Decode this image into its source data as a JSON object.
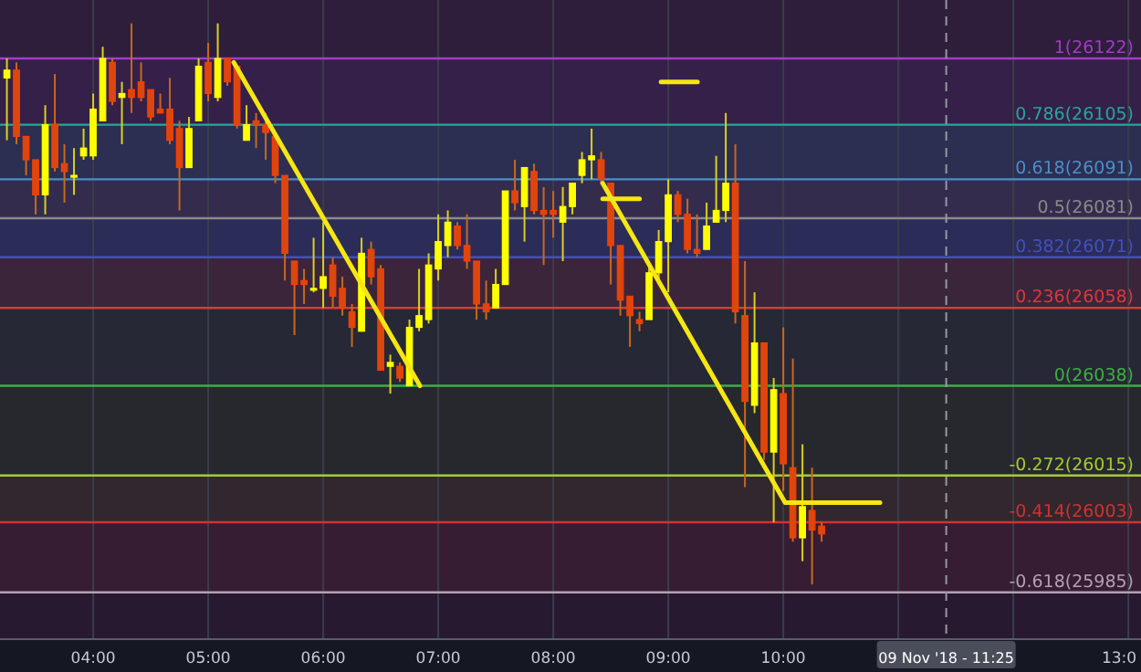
{
  "chart_data": {
    "type": "candlestick",
    "x": [
      3.25,
      3.3333,
      3.4167,
      3.5,
      3.5833,
      3.6667,
      3.75,
      3.8333,
      3.9167,
      4,
      4.0833,
      4.1667,
      4.25,
      4.3333,
      4.4167,
      4.5,
      4.5833,
      4.6667,
      4.75,
      4.8333,
      4.9167,
      5,
      5.0833,
      5.1667,
      5.25,
      5.3333,
      5.4167,
      5.5,
      5.5833,
      5.6667,
      5.75,
      5.8333,
      5.9167,
      6,
      6.0833,
      6.1667,
      6.25,
      6.3333,
      6.4167,
      6.5,
      6.5833,
      6.6667,
      6.75,
      6.8333,
      6.9167,
      7,
      7.0833,
      7.1667,
      7.25,
      7.3333,
      7.4167,
      7.5,
      7.5833,
      7.6667,
      7.75,
      7.8333,
      7.9167,
      8,
      8.0833,
      8.1667,
      8.25,
      8.3333,
      8.4167,
      8.5,
      8.5833,
      8.6667,
      8.75,
      8.8333,
      8.9167,
      9,
      9.0833,
      9.1667,
      9.25,
      9.3333,
      9.4167,
      9.5,
      9.5833,
      9.6667,
      9.75,
      9.8333,
      9.9167,
      10,
      10.0833,
      10.1667,
      10.25,
      10.3333
    ],
    "ohlc": [
      [
        26117,
        26122,
        26101,
        26119
      ],
      [
        26119,
        26121,
        26100,
        26102
      ],
      [
        26102,
        26102,
        26092,
        26096
      ],
      [
        26096,
        26096,
        26082,
        26087
      ],
      [
        26087,
        26110,
        26082,
        26105
      ],
      [
        26105,
        26118,
        26093,
        26094
      ],
      [
        26095,
        26100,
        26085,
        26093
      ],
      [
        26092,
        26099,
        26087,
        26092
      ],
      [
        26097,
        26104,
        26096,
        26099
      ],
      [
        26097,
        26113,
        26096,
        26109
      ],
      [
        26106,
        26125,
        26106,
        26122
      ],
      [
        26121,
        26122,
        26110,
        26111
      ],
      [
        26112,
        26116,
        26100,
        26113
      ],
      [
        26114,
        26131,
        26108,
        26112
      ],
      [
        26116,
        26121,
        26111,
        26112
      ],
      [
        26114,
        26114,
        26106,
        26107
      ],
      [
        26109,
        26113,
        26108,
        26108
      ],
      [
        26109,
        26117,
        26100,
        26101
      ],
      [
        26104,
        26106,
        26083,
        26094
      ],
      [
        26094,
        26107,
        26094,
        26104
      ],
      [
        26106,
        26122,
        26106,
        26120
      ],
      [
        26121,
        26126,
        26111,
        26113
      ],
      [
        26112,
        26131,
        26111,
        26122
      ],
      [
        26122,
        26122,
        26115,
        26116
      ],
      [
        26120,
        26120,
        26104,
        26105
      ],
      [
        26101,
        26110,
        26101,
        26105
      ],
      [
        26106,
        26108,
        26099,
        26105
      ],
      [
        26105,
        26108,
        26096,
        26103
      ],
      [
        26102,
        26102,
        26090,
        26092
      ],
      [
        26092,
        26092,
        26065,
        26072
      ],
      [
        26070,
        26070,
        26051,
        26064
      ],
      [
        26065,
        26068,
        26059,
        26064
      ],
      [
        26063,
        26076,
        26062,
        26063
      ],
      [
        26063,
        26080,
        26058,
        26066
      ],
      [
        26069,
        26071,
        26058,
        26061
      ],
      [
        26063,
        26066,
        26056,
        26058
      ],
      [
        26057,
        26059,
        26048,
        26053
      ],
      [
        26052,
        26076,
        26052,
        26072
      ],
      [
        26073,
        26075,
        26064,
        26066
      ],
      [
        26068,
        26069,
        26042,
        26042
      ],
      [
        26043,
        26046,
        26036,
        26044
      ],
      [
        26043,
        26044,
        26039,
        26040
      ],
      [
        26038,
        26055,
        26038,
        26053
      ],
      [
        26053,
        26068,
        26052,
        26056
      ],
      [
        26055,
        26072,
        26054,
        26069
      ],
      [
        26068,
        26082,
        26065,
        26075
      ],
      [
        26074,
        26083,
        26071,
        26080
      ],
      [
        26079,
        26080,
        26073,
        26074
      ],
      [
        26074,
        26082,
        26068,
        26070
      ],
      [
        26070,
        26070,
        26055,
        26059
      ],
      [
        26059,
        26065,
        26055,
        26057
      ],
      [
        26058,
        26068,
        26058,
        26064
      ],
      [
        26064,
        26088,
        26064,
        26088
      ],
      [
        26088,
        26096,
        26083,
        26085
      ],
      [
        26084,
        26094,
        26075,
        26094
      ],
      [
        26093,
        26095,
        26082,
        26083
      ],
      [
        26083,
        26089,
        26069,
        26082
      ],
      [
        26083,
        26088,
        26076,
        26082
      ],
      [
        26080,
        26089,
        26070,
        26084
      ],
      [
        26084,
        26090,
        26082,
        26090
      ],
      [
        26092,
        26098,
        26090,
        26096
      ],
      [
        26096,
        26104,
        26091,
        26097
      ],
      [
        26096,
        26098,
        26090,
        26091
      ],
      [
        26090,
        26090,
        26064,
        26074
      ],
      [
        26074,
        26074,
        26056,
        26060
      ],
      [
        26061,
        26061,
        26048,
        26056
      ],
      [
        26055,
        26057,
        26052,
        26054
      ],
      [
        26055,
        26069,
        26055,
        26067
      ],
      [
        26067,
        26078,
        26064,
        26075
      ],
      [
        26075,
        26091,
        26062,
        26087
      ],
      [
        26087,
        26088,
        26080,
        26082
      ],
      [
        26082,
        26086,
        26072,
        26073
      ],
      [
        26073,
        26082,
        26071,
        26072
      ],
      [
        26073,
        26085,
        26073,
        26079
      ],
      [
        26080,
        26097,
        26080,
        26083
      ],
      [
        26083,
        26108,
        26080,
        26090
      ],
      [
        26090,
        26100,
        26054,
        26057
      ],
      [
        26056,
        26070,
        26012,
        26034
      ],
      [
        26033,
        26062,
        26031,
        26049
      ],
      [
        26049,
        26049,
        26019,
        26021
      ],
      [
        26021,
        26040,
        26003,
        26037
      ],
      [
        26036,
        26053,
        26011,
        26018
      ],
      [
        26017,
        26045,
        25998,
        25999
      ],
      [
        25999,
        26023,
        25993,
        26007
      ],
      [
        26006,
        26017,
        25987,
        26001
      ],
      [
        26002,
        26003,
        25998,
        26000
      ]
    ],
    "series": [
      {
        "type": "line",
        "color": "#f5e614",
        "x": [
          5.222,
          6.841
        ],
        "values": [
          26121,
          26038
        ]
      },
      {
        "type": "line",
        "color": "#f5e614",
        "x": [
          8.429,
          10.016,
          10.841
        ],
        "values": [
          26090,
          26008,
          26008
        ]
      },
      {
        "type": "line",
        "color": "#f5e614",
        "x": [
          8.937,
          9.254
        ],
        "values": [
          26116,
          26116
        ]
      },
      {
        "type": "line",
        "color": "#f5e614",
        "x": [
          8.43,
          8.75
        ],
        "values": [
          26086,
          26086
        ]
      }
    ],
    "xlim": [
      3.19,
      13.11
    ],
    "ylim": [
      25973,
      26137
    ],
    "xticks": [
      {
        "value": 4,
        "label": "04:00"
      },
      {
        "value": 5,
        "label": "05:00"
      },
      {
        "value": 6,
        "label": "06:00"
      },
      {
        "value": 7,
        "label": "07:00"
      },
      {
        "value": 8,
        "label": "08:00"
      },
      {
        "value": 9,
        "label": "09:00"
      },
      {
        "value": 10,
        "label": "10:00"
      },
      {
        "value": 11,
        "label": null
      },
      {
        "value": 12,
        "label": null
      },
      {
        "value": 13,
        "label": "13:0"
      }
    ],
    "annotations": [
      "09 Nov '18 - 11:25"
    ],
    "grid": "x",
    "tick_labels": "x",
    "bands": [
      {
        "axis": "y",
        "from": 26122,
        "to": 26137,
        "color": "#33203f"
      },
      {
        "axis": "y",
        "from": 26105,
        "to": 26122,
        "color": "#3a2250"
      },
      {
        "axis": "y",
        "from": 26091,
        "to": 26105,
        "color": "#30325a"
      },
      {
        "axis": "y",
        "from": 26081,
        "to": 26091,
        "color": "#3a3055"
      },
      {
        "axis": "y",
        "from": 26071,
        "to": 26081,
        "color": "#303062"
      },
      {
        "axis": "y",
        "from": 26058,
        "to": 26071,
        "color": "#42283f"
      },
      {
        "axis": "y",
        "from": 26038,
        "to": 26058,
        "color": "#292c38"
      },
      {
        "axis": "y",
        "from": 26015,
        "to": 26038,
        "color": "#2a2c30"
      },
      {
        "axis": "y",
        "from": 26003,
        "to": 26015,
        "color": "#372a30"
      },
      {
        "axis": "y",
        "from": 25985,
        "to": 26003,
        "color": "#3c1e36"
      },
      {
        "axis": "y",
        "from": 25973,
        "to": 25985,
        "color": "#2a1a32"
      }
    ],
    "ref_lines": [
      {
        "axis": "y",
        "value": 26122,
        "label": "1(26122)",
        "color": "#a23cc8"
      },
      {
        "axis": "y",
        "value": 26105,
        "label": "0.786(26105)",
        "color": "#26a69a"
      },
      {
        "axis": "y",
        "value": 26091,
        "label": "0.618(26091)",
        "color": "#4a8fc8"
      },
      {
        "axis": "y",
        "value": 26081,
        "label": "0.5(26081)",
        "color": "#8a8a8a"
      },
      {
        "axis": "y",
        "value": 26071,
        "label": "0.382(26071)",
        "color": "#4150c0"
      },
      {
        "axis": "y",
        "value": 26058,
        "label": "0.236(26058)",
        "color": "#d83a3a"
      },
      {
        "axis": "y",
        "value": 26038,
        "label": "0(26038)",
        "color": "#3fae45"
      },
      {
        "axis": "y",
        "value": 26015,
        "label": "-0.272(26015)",
        "color": "#a4cc2e"
      },
      {
        "axis": "y",
        "value": 26003,
        "label": "-0.414(26003)",
        "color": "#d43030"
      },
      {
        "axis": "y",
        "value": 25985,
        "label": "-0.618(25985)",
        "color": "#b4a0b4"
      },
      {
        "axis": "x",
        "value": 11.4167,
        "color": "#9598a1",
        "line_style": "dashed"
      }
    ]
  }
}
